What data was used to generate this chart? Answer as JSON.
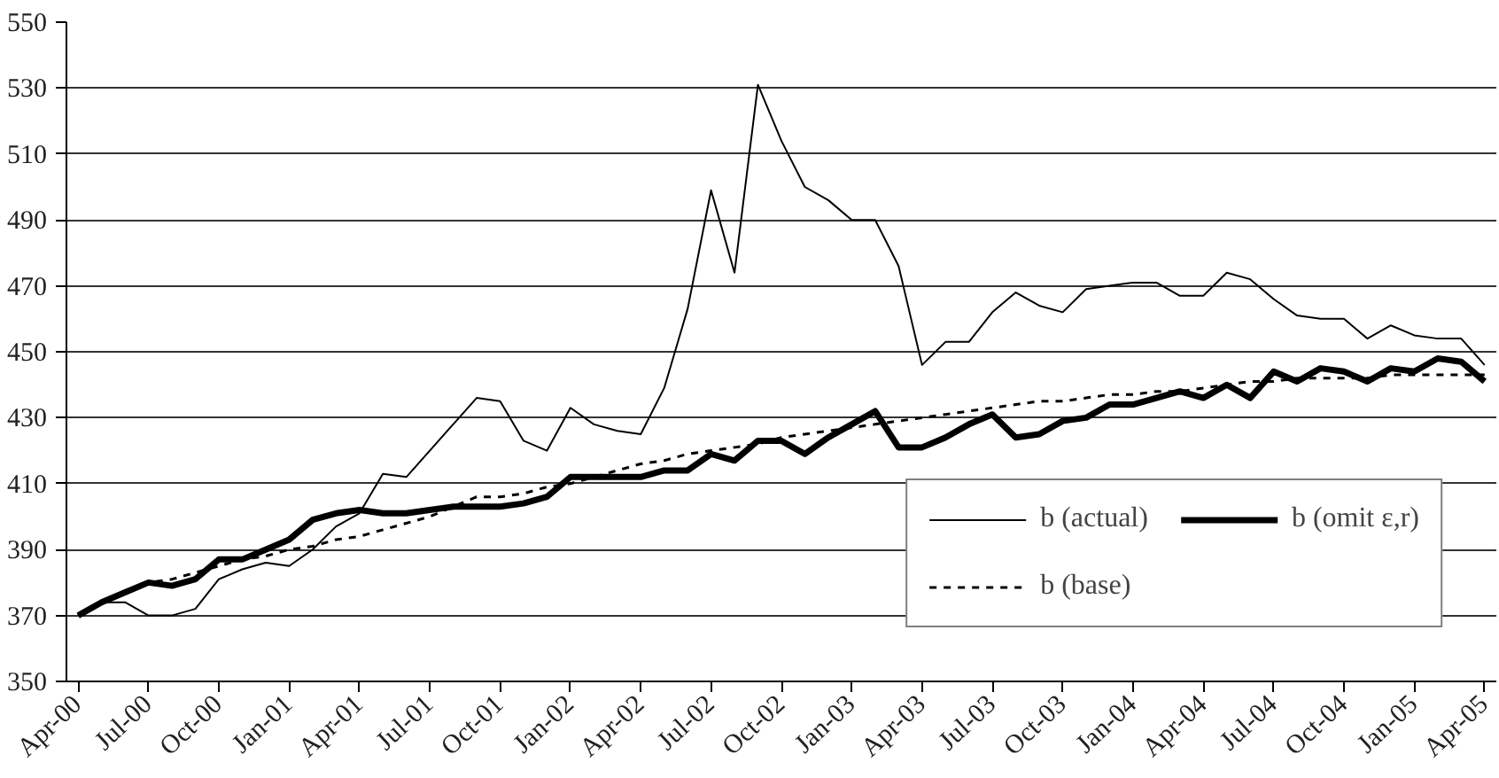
{
  "chart_data": {
    "type": "line",
    "categories": [
      "Apr-00",
      null,
      null,
      "Jul-00",
      null,
      null,
      "Oct-00",
      null,
      null,
      "Jan-01",
      null,
      null,
      "Apr-01",
      null,
      null,
      "Jul-01",
      null,
      null,
      "Oct-01",
      null,
      null,
      "Jan-02",
      null,
      null,
      "Apr-02",
      null,
      null,
      "Jul-02",
      null,
      null,
      "Oct-02",
      null,
      null,
      "Jan-03",
      null,
      null,
      "Apr-03",
      null,
      null,
      "Jul-03",
      null,
      null,
      "Oct-03",
      null,
      null,
      "Jan-04",
      null,
      null,
      "Apr-04",
      null,
      null,
      "Jul-04",
      null,
      null,
      "Oct-04",
      null,
      null,
      "Jan-05",
      null,
      null,
      "Apr-05"
    ],
    "series": [
      {
        "name": "b (actual)",
        "color": "#000000",
        "line_style": "solid",
        "values": [
          370,
          374,
          374,
          370,
          370,
          372,
          381,
          384,
          386,
          385,
          390,
          397,
          401,
          413,
          412,
          420,
          428,
          436,
          435,
          423,
          420,
          433,
          428,
          426,
          425,
          439,
          463,
          499,
          474,
          531,
          514,
          500,
          496,
          490,
          490,
          476,
          446,
          453,
          453,
          462,
          468,
          464,
          462,
          469,
          470,
          471,
          471,
          467,
          467,
          474,
          472,
          466,
          461,
          460,
          460,
          454,
          458,
          455,
          454,
          454,
          446
        ]
      },
      {
        "name": "b (base)",
        "color": "#000000",
        "line_style": "dashed",
        "values": [
          370,
          374,
          377,
          380,
          381,
          383,
          385,
          387,
          388,
          390,
          391,
          393,
          394,
          396,
          398,
          400,
          403,
          406,
          406,
          407,
          409,
          410,
          412,
          414,
          416,
          417,
          419,
          420,
          421,
          422,
          424,
          425,
          426,
          427,
          428,
          429,
          430,
          431,
          432,
          433,
          434,
          435,
          435,
          436,
          437,
          437,
          438,
          438,
          439,
          440,
          441,
          441,
          442,
          442,
          442,
          442,
          443,
          443,
          443,
          443,
          443
        ]
      },
      {
        "name": "b (omit ε,r)",
        "color": "#000000",
        "line_style": "solid",
        "values": [
          370,
          374,
          377,
          380,
          379,
          381,
          387,
          387,
          390,
          393,
          399,
          401,
          402,
          401,
          401,
          402,
          403,
          403,
          403,
          404,
          406,
          412,
          412,
          412,
          412,
          414,
          414,
          419,
          417,
          423,
          423,
          419,
          424,
          428,
          432,
          421,
          421,
          424,
          428,
          431,
          424,
          425,
          429,
          430,
          434,
          434,
          436,
          438,
          436,
          440,
          436,
          444,
          441,
          445,
          444,
          441,
          445,
          444,
          448,
          447,
          441
        ]
      }
    ],
    "ylim": [
      350,
      550
    ],
    "yticks": [
      350,
      370,
      390,
      410,
      430,
      450,
      470,
      490,
      510,
      530,
      550
    ],
    "grid": "y",
    "legend": "bottom right",
    "marker": "none"
  }
}
